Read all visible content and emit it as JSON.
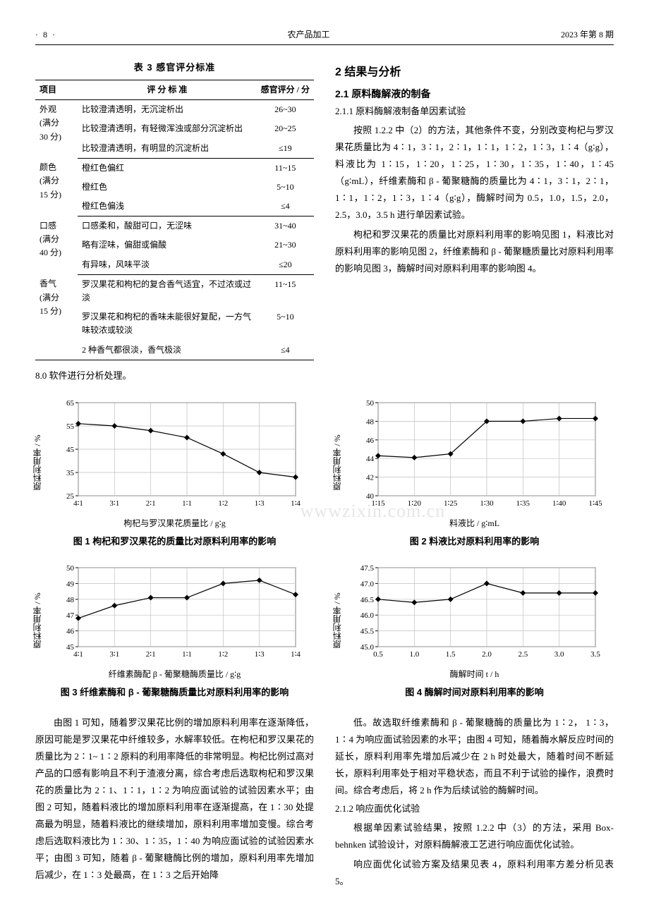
{
  "header": {
    "page_number": "· 8 ·",
    "journal": "农产品加工",
    "issue": "2023 年第 8 期"
  },
  "table3": {
    "caption": "表 3   感官评分标准",
    "columns": [
      "项目",
      "评 分 标 准",
      "感官评分 / 分"
    ],
    "groups": [
      {
        "item": "外观\n(满分\n30 分)",
        "rows": [
          [
            "比较澄清透明，无沉淀析出",
            "26~30"
          ],
          [
            "比较澄清透明，有轻微浑浊或部分沉淀析出",
            "20~25"
          ],
          [
            "比较澄清透明，有明显的沉淀析出",
            "≤19"
          ]
        ]
      },
      {
        "item": "颜色\n(满分\n15 分)",
        "rows": [
          [
            "橙红色偏红",
            "11~15"
          ],
          [
            "橙红色",
            "5~10"
          ],
          [
            "橙红色偏浅",
            "≤4"
          ]
        ]
      },
      {
        "item": "口感\n(满分\n40 分)",
        "rows": [
          [
            "口感柔和，酸甜可口，无涩味",
            "31~40"
          ],
          [
            "略有涩味，偏甜或偏酸",
            "21~30"
          ],
          [
            "有异味，风味平淡",
            "≤20"
          ]
        ]
      },
      {
        "item": "香气\n(满分\n15 分)",
        "rows": [
          [
            "罗汉果花和枸杞的复合香气适宜，不过浓或过淡",
            "11~15"
          ],
          [
            "罗汉果花和枸杞的香味未能很好复配，一方气味较浓或较淡",
            "5~10"
          ],
          [
            "2 种香气都很淡，香气极淡",
            "≤4"
          ]
        ]
      }
    ]
  },
  "left_after_table": "8.0 软件进行分析处理。",
  "section2": {
    "heading": "2   结果与分析",
    "sub1_heading": "2.1   原料酶解液的制备",
    "sub11_heading": "2.1.1   原料酶解液制备单因素试验",
    "p1": "按照 1.2.2 中（2）的方法，其他条件不变，分别改变枸杞与罗汉果花质量比为 4∶1，3∶1，2∶1，1∶1，1∶2，1∶3，1∶4（g∶g），料液比为 1∶15，1∶20，1∶25，1∶30，1∶35，1∶40，1∶45（g∶mL），纤维素酶和 β - 葡聚糖酶的质量比为 4∶1，3∶1，2∶1，1∶1，1∶2，1∶3，1∶4（g∶g），酶解时间为 0.5，1.0，1.5，2.0，2.5，3.0，3.5 h 进行单因素试验。",
    "p2": "枸杞和罗汉果花的质量比对原料利用率的影响见图 1，料液比对原料利用率的影响见图 2，纤维素酶和 β - 葡聚糖质量比对原料利用率的影响见图 3，酶解时间对原料利用率的影响图 4。"
  },
  "fig1": {
    "caption": "图 1   枸杞和罗汉果花的质量比对原料利用率的影响",
    "type": "line",
    "x_labels": [
      "4∶1",
      "3∶1",
      "2∶1",
      "1∶1",
      "1∶2",
      "1∶3",
      "1∶4"
    ],
    "x_positions": [
      1,
      2,
      3,
      4,
      5,
      6,
      7
    ],
    "y_values": [
      56,
      55,
      53,
      50,
      43,
      35,
      33
    ],
    "y_label": "原料利用率 / %",
    "x_axis_title": "枸杞与罗汉果花质量比 / g∶g",
    "ylim": [
      25,
      65
    ],
    "ytick_step": 10,
    "marker": "diamond",
    "line_color": "#000000",
    "line_width": 1.2,
    "grid_color": "#bfbfbf",
    "background": "#ffffff",
    "fontsize": 11,
    "watermark_left": "www"
  },
  "fig2": {
    "caption": "图 2   料液比对原料利用率的影响",
    "type": "line",
    "x_labels": [
      "1∶15",
      "1∶20",
      "1∶25",
      "1∶30",
      "1∶35",
      "1∶40",
      "1∶45"
    ],
    "x_positions": [
      1,
      2,
      3,
      4,
      5,
      6,
      7
    ],
    "y_values": [
      44.3,
      44.1,
      44.5,
      48.0,
      48.0,
      48.3,
      48.3
    ],
    "y_label": "原料利用率 / %",
    "x_axis_title": "料液比 / g∶mL",
    "ylim": [
      40,
      50
    ],
    "ytick_step": 2,
    "marker": "diamond",
    "line_color": "#000000",
    "line_width": 1.2,
    "grid_color": "#bfbfbf",
    "background": "#ffffff",
    "fontsize": 11,
    "watermark_right": "zixin.com.cn"
  },
  "fig3": {
    "caption": "图 3   纤维素酶和 β - 葡聚糖酶质量比对原料利用率的影响",
    "type": "line",
    "x_labels": [
      "4∶1",
      "3∶1",
      "2∶1",
      "1∶1",
      "1∶2",
      "1∶3",
      "1∶4"
    ],
    "x_positions": [
      1,
      2,
      3,
      4,
      5,
      6,
      7
    ],
    "y_values": [
      46.8,
      47.6,
      48.1,
      48.1,
      49.0,
      49.2,
      48.3
    ],
    "y_label": "原料利用率 / %",
    "x_axis_title": "纤维素酶配 β - 葡聚糖酶质量比 / g∶g",
    "ylim": [
      45,
      50
    ],
    "ytick_step": 1,
    "marker": "diamond",
    "line_color": "#000000",
    "line_width": 1.2,
    "grid_color": "#bfbfbf",
    "background": "#ffffff",
    "fontsize": 11
  },
  "fig4": {
    "caption": "图 4   酶解时间对原料利用率的影响",
    "type": "line",
    "x_labels": [
      "0.5",
      "1.0",
      "1.5",
      "2.0",
      "2.5",
      "3.0",
      "3.5"
    ],
    "x_positions": [
      0.5,
      1.0,
      1.5,
      2.0,
      2.5,
      3.0,
      3.5
    ],
    "y_values": [
      46.5,
      46.4,
      46.5,
      47.0,
      46.7,
      46.7,
      46.7
    ],
    "y_label": "原料利用率 / %",
    "x_axis_title": "酶解时间 t / h",
    "ylim": [
      45.0,
      47.5
    ],
    "ytick_step": 0.5,
    "marker": "diamond",
    "line_color": "#000000",
    "line_width": 1.2,
    "grid_color": "#bfbfbf",
    "background": "#ffffff",
    "fontsize": 11
  },
  "discussion_left": [
    "由图 1 可知，随着罗汉果花比例的增加原料利用率在逐渐降低，原因可能是罗汉果花中纤维较多，水解率较低。在枸杞和罗汉果花的质量比为 2∶1~ 1∶2 原料的利用率降低的非常明显。枸杞比例过高对产品的口感有影响且不利于渣液分离，综合考虑后选取枸杞和罗汉果花的质量比为 2∶1、1∶1，1∶2 为响应面试验的试验因素水平；由图 2 可知，随着料液比的增加原料利用率在逐渐提高，在 1∶30 处提高最为明显，随着料液比的继续增加，原料利用率增加变慢。综合考虑后选取料液比为 1∶30、1∶35，1∶40 为响应面试验的试验因素水平；由图 3 可知，随着 β - 葡聚糖酶比例的增加，原料利用率先增加后减少，在 1∶3 处最高，在 1∶3 之后开始降"
  ],
  "discussion_right": [
    "低。故选取纤维素酶和 β - 葡聚糖酶的质量比为 1∶2， 1∶3，1∶4 为响应面试验因素的水平；由图 4 可知，随着酶水解反应时间的延长，原料利用率先增加后减少在 2 h 时处最大，随着时间不断延长，原料利用率处于相对平稳状态，而且不利于试验的操作，浪费时间。综合考虑后，将 2 h 作为后续试验的酶解时间。"
  ],
  "sub12": {
    "heading": "2.1.2   响应面优化试验",
    "p1": "根据单因素试验结果，按照 1.2.2 中（3）的方法，采用 Box-behnken 试验设计，对原料酶解液工艺进行响应面优化试验。",
    "p2": "响应面优化试验方案及结果见表 4，原料利用率方差分析见表 5。"
  }
}
